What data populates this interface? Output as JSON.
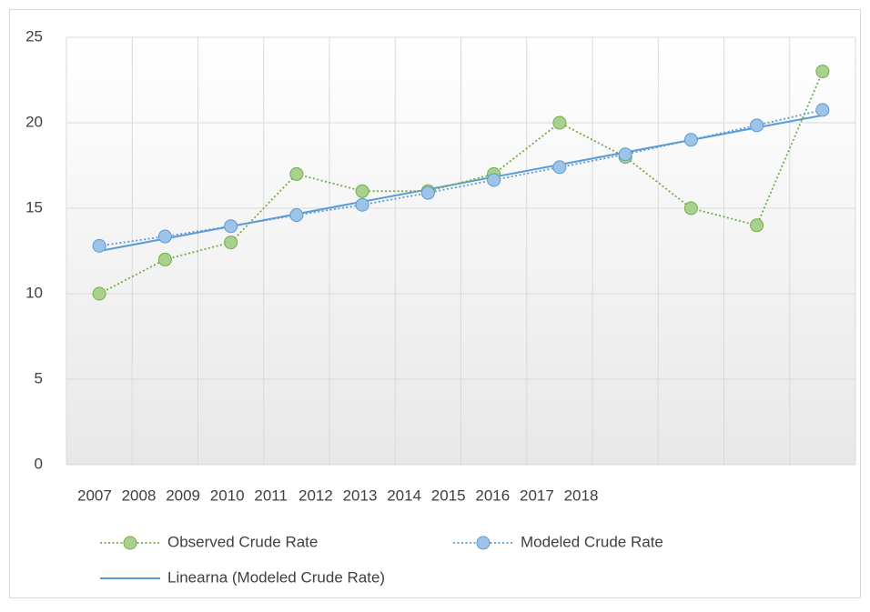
{
  "chart_data": {
    "type": "line",
    "categories": [
      "2007",
      "2008",
      "2009",
      "2010",
      "2011",
      "2012",
      "2013",
      "2014",
      "2015",
      "2016",
      "2017",
      "2018"
    ],
    "series": [
      {
        "name": "Observed Crude Rate",
        "color": "#70ad47",
        "marker_fill": "#a9d18e",
        "dash": "dotted",
        "values": [
          10,
          12,
          13,
          17,
          16,
          16,
          17,
          20,
          18,
          15,
          14,
          23
        ]
      },
      {
        "name": "Modeled Crude Rate",
        "color": "#5b9bd5",
        "marker_fill": "#9dc3e6",
        "dash": "dotted",
        "values": [
          12.8,
          13.35,
          13.95,
          14.6,
          15.2,
          15.9,
          16.65,
          17.4,
          18.15,
          19.0,
          19.85,
          20.75
        ]
      }
    ],
    "trendline": {
      "name": "Linearna (Modeled Crude Rate)",
      "color": "#5b9bd5",
      "of_series": 1
    },
    "ylim": [
      0,
      25
    ],
    "yticks": [
      0,
      5,
      10,
      15,
      20,
      25
    ],
    "grid": true,
    "legend": "bottom"
  }
}
